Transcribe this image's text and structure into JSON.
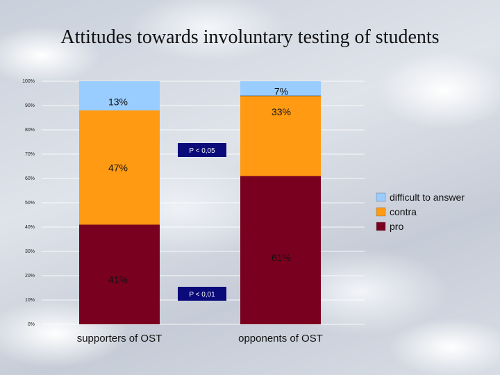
{
  "title": "Attitudes towards involuntary testing of students",
  "colors": {
    "pro": "#7a0020",
    "contra": "#ff9a12",
    "difficult": "#99ccff",
    "note_box": "#0a0a7a",
    "grid": "#ffffff"
  },
  "chart_data": {
    "type": "bar",
    "stacked": true,
    "title": "Attitudes towards involuntary testing of students",
    "categories": [
      "supporters of OST",
      "opponents of OST"
    ],
    "series": [
      {
        "name": "pro",
        "values": [
          41,
          61
        ],
        "labels": [
          "41%",
          "61%"
        ]
      },
      {
        "name": "contra",
        "values": [
          47,
          33
        ],
        "labels": [
          "47%",
          "33%"
        ]
      },
      {
        "name": "difficult to answer",
        "values": [
          13,
          7
        ],
        "labels": [
          "13%",
          "7%"
        ]
      }
    ],
    "legend_order": [
      "difficult to answer",
      "contra",
      "pro"
    ],
    "ylim": [
      0,
      100
    ],
    "yticks": [
      "0%",
      "10%",
      "20%",
      "30%",
      "40%",
      "50%",
      "60%",
      "70%",
      "80%",
      "90%",
      "100%"
    ],
    "grid": true,
    "legend_position": "right",
    "annotations": [
      "P < 0,05",
      "P < 0,01"
    ]
  }
}
